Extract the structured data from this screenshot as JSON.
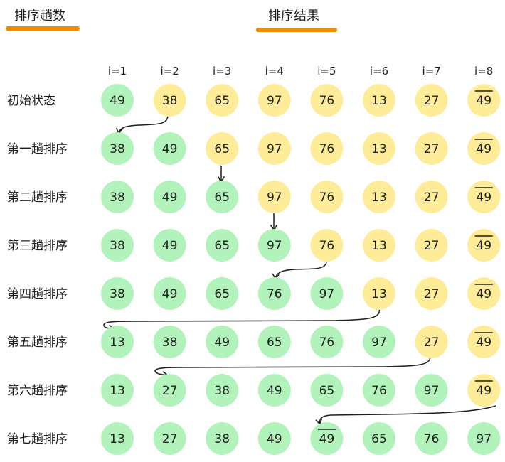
{
  "headers": {
    "left_title": "排序趟数",
    "right_title": "排序结果"
  },
  "columns": [
    "i=1",
    "i=2",
    "i=3",
    "i=4",
    "i=5",
    "i=6",
    "i=7",
    "i=8"
  ],
  "rows": [
    {
      "label": "初始状态",
      "cells": [
        {
          "v": "49",
          "c": "green"
        },
        {
          "v": "38",
          "c": "yellow"
        },
        {
          "v": "65",
          "c": "yellow"
        },
        {
          "v": "97",
          "c": "yellow"
        },
        {
          "v": "76",
          "c": "yellow"
        },
        {
          "v": "13",
          "c": "yellow"
        },
        {
          "v": "27",
          "c": "yellow"
        },
        {
          "v": "49",
          "c": "yellow",
          "bar": true
        }
      ]
    },
    {
      "label": "第一趟排序",
      "cells": [
        {
          "v": "38",
          "c": "green"
        },
        {
          "v": "49",
          "c": "green"
        },
        {
          "v": "65",
          "c": "yellow"
        },
        {
          "v": "97",
          "c": "yellow"
        },
        {
          "v": "76",
          "c": "yellow"
        },
        {
          "v": "13",
          "c": "yellow"
        },
        {
          "v": "27",
          "c": "yellow"
        },
        {
          "v": "49",
          "c": "yellow",
          "bar": true
        }
      ]
    },
    {
      "label": "第二趟排序",
      "cells": [
        {
          "v": "38",
          "c": "green"
        },
        {
          "v": "49",
          "c": "green"
        },
        {
          "v": "65",
          "c": "green"
        },
        {
          "v": "97",
          "c": "yellow"
        },
        {
          "v": "76",
          "c": "yellow"
        },
        {
          "v": "13",
          "c": "yellow"
        },
        {
          "v": "27",
          "c": "yellow"
        },
        {
          "v": "49",
          "c": "yellow",
          "bar": true
        }
      ]
    },
    {
      "label": "第三趟排序",
      "cells": [
        {
          "v": "38",
          "c": "green"
        },
        {
          "v": "49",
          "c": "green"
        },
        {
          "v": "65",
          "c": "green"
        },
        {
          "v": "97",
          "c": "green"
        },
        {
          "v": "76",
          "c": "yellow"
        },
        {
          "v": "13",
          "c": "yellow"
        },
        {
          "v": "27",
          "c": "yellow"
        },
        {
          "v": "49",
          "c": "yellow",
          "bar": true
        }
      ]
    },
    {
      "label": "第四趟排序",
      "cells": [
        {
          "v": "38",
          "c": "green"
        },
        {
          "v": "49",
          "c": "green"
        },
        {
          "v": "65",
          "c": "green"
        },
        {
          "v": "76",
          "c": "green"
        },
        {
          "v": "97",
          "c": "green"
        },
        {
          "v": "13",
          "c": "yellow"
        },
        {
          "v": "27",
          "c": "yellow"
        },
        {
          "v": "49",
          "c": "yellow",
          "bar": true
        }
      ]
    },
    {
      "label": "第五趟排序",
      "cells": [
        {
          "v": "13",
          "c": "green"
        },
        {
          "v": "38",
          "c": "green"
        },
        {
          "v": "49",
          "c": "green"
        },
        {
          "v": "65",
          "c": "green"
        },
        {
          "v": "76",
          "c": "green"
        },
        {
          "v": "97",
          "c": "green"
        },
        {
          "v": "27",
          "c": "yellow"
        },
        {
          "v": "49",
          "c": "yellow",
          "bar": true
        }
      ]
    },
    {
      "label": "第六趟排序",
      "cells": [
        {
          "v": "13",
          "c": "green"
        },
        {
          "v": "27",
          "c": "green"
        },
        {
          "v": "38",
          "c": "green"
        },
        {
          "v": "49",
          "c": "green"
        },
        {
          "v": "65",
          "c": "green"
        },
        {
          "v": "76",
          "c": "green"
        },
        {
          "v": "97",
          "c": "green"
        },
        {
          "v": "49",
          "c": "yellow",
          "bar": true
        }
      ]
    },
    {
      "label": "第七趟排序",
      "cells": [
        {
          "v": "13",
          "c": "green"
        },
        {
          "v": "27",
          "c": "green"
        },
        {
          "v": "38",
          "c": "green"
        },
        {
          "v": "49",
          "c": "green"
        },
        {
          "v": "49",
          "c": "green",
          "bar": true
        },
        {
          "v": "65",
          "c": "green"
        },
        {
          "v": "76",
          "c": "green"
        },
        {
          "v": "97",
          "c": "green"
        }
      ]
    }
  ],
  "colors": {
    "green": "#b2f2bb",
    "yellow": "#ffec99",
    "accent": "#f08c00",
    "ink": "#1e1e1e"
  }
}
